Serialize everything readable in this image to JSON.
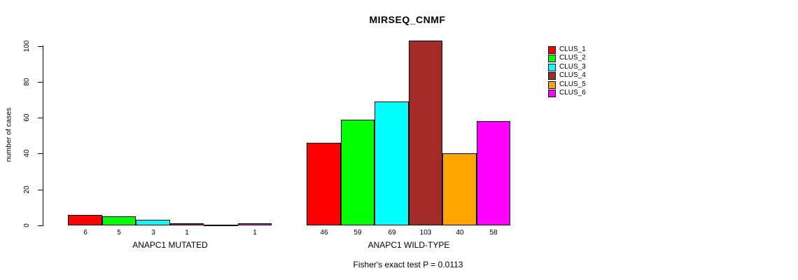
{
  "chart_data": {
    "type": "bar",
    "title": "MIRSEQ_CNMF",
    "ylabel": "number of cases",
    "ylim": [
      0,
      100
    ],
    "yticks": [
      0,
      20,
      40,
      60,
      80,
      100
    ],
    "grid": false,
    "legend_position": "right",
    "series_names": [
      "CLUS_1",
      "CLUS_2",
      "CLUS_3",
      "CLUS_4",
      "CLUS_5",
      "CLUS_6"
    ],
    "series_colors": [
      "#FF0000",
      "#00FF00",
      "#00FFFF",
      "#A52A2A",
      "#FFA500",
      "#FF00FF"
    ],
    "groups": [
      {
        "label": "ANAPC1 MUTATED",
        "values": [
          6,
          5,
          3,
          1,
          0,
          1
        ],
        "bar_labels": [
          "6",
          "5",
          "3",
          "1",
          "",
          "1"
        ]
      },
      {
        "label": "ANAPC1 WILD-TYPE",
        "values": [
          46,
          59,
          69,
          103,
          40,
          58
        ],
        "bar_labels": [
          "46",
          "59",
          "69",
          "103",
          "40",
          "58"
        ]
      }
    ],
    "annotation": "Fisher's exact test P = 0.0113"
  },
  "legend": {
    "items": [
      {
        "label": "CLUS_1",
        "color": "#FF0000"
      },
      {
        "label": "CLUS_2",
        "color": "#00FF00"
      },
      {
        "label": "CLUS_3",
        "color": "#00FFFF"
      },
      {
        "label": "CLUS_4",
        "color": "#A52A2A"
      },
      {
        "label": "CLUS_5",
        "color": "#FFA500"
      },
      {
        "label": "CLUS_6",
        "color": "#FF00FF"
      }
    ]
  }
}
